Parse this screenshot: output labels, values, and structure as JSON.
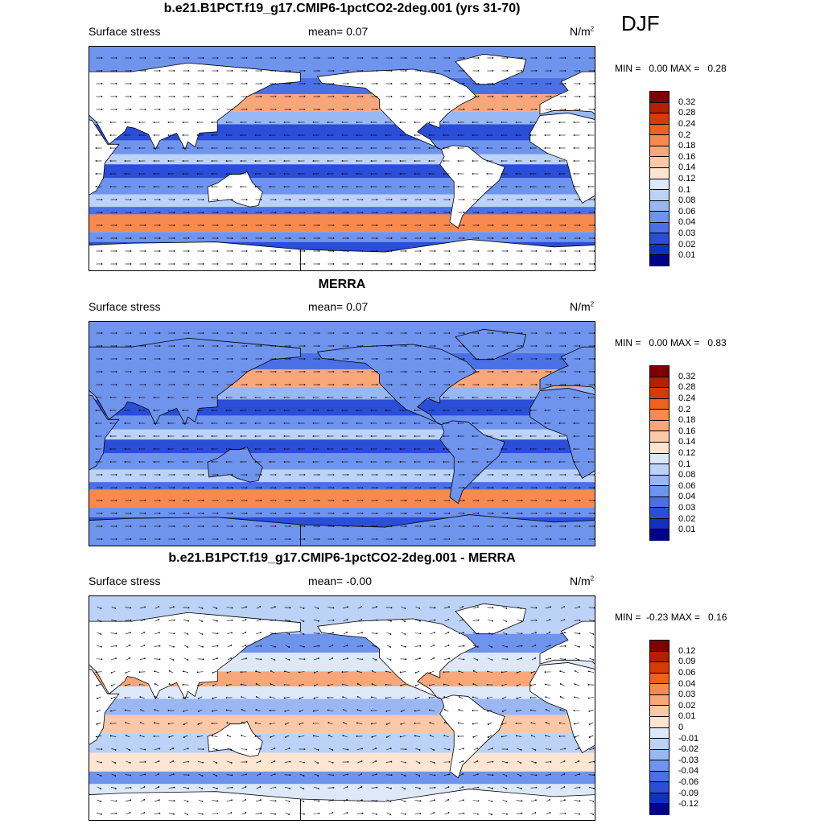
{
  "season": "DJF",
  "panels": [
    {
      "title": "b.e21.B1PCT.f19_g17.CMIP6-1pctCO2-2deg.001 (yrs 31-70)",
      "variable": "Surface stress",
      "mean": "mean=   0.07",
      "unit": "N/m",
      "unit_sup": "2",
      "minmax": "MIN =   0.00 MAX =   0.28",
      "scale": "abs",
      "field_variant": "model"
    },
    {
      "title": "MERRA",
      "variable": "Surface stress",
      "mean": "mean=   0.07",
      "unit": "N/m",
      "unit_sup": "2",
      "minmax": "MIN =   0.00 MAX =   0.83",
      "scale": "abs",
      "field_variant": "obs"
    },
    {
      "title": "b.e21.B1PCT.f19_g17.CMIP6-1pctCO2-2deg.001 - MERRA",
      "variable": "Surface stress",
      "mean": "mean=   -0.00",
      "unit": "N/m",
      "unit_sup": "2",
      "minmax": "MIN =  -0.23 MAX =   0.16",
      "scale": "diff",
      "field_variant": "diff"
    }
  ],
  "colorbars": {
    "abs": {
      "labels": [
        "0.32",
        "0.28",
        "0.24",
        "0.2",
        "0.18",
        "0.16",
        "0.14",
        "0.12",
        "0.1",
        "0.08",
        "0.06",
        "0.04",
        "0.03",
        "0.02",
        "0.01"
      ],
      "colors": [
        "#7f0000",
        "#b22000",
        "#d83a06",
        "#f0601e",
        "#f88a50",
        "#f9a77a",
        "#fcc8a8",
        "#fde5d2",
        "#dde8f8",
        "#bcd2f6",
        "#99b8f3",
        "#6f94ee",
        "#4a70e6",
        "#2a4ed8",
        "#1231c0",
        "#00038a"
      ]
    },
    "diff": {
      "labels": [
        "0.12",
        "0.09",
        "0.06",
        "0.04",
        "0.03",
        "0.02",
        "0.01",
        "0",
        "-0.01",
        "-0.02",
        "-0.03",
        "-0.04",
        "-0.06",
        "-0.09",
        "-0.12"
      ],
      "colors": [
        "#7f0000",
        "#b22000",
        "#d83a06",
        "#f0601e",
        "#f88a50",
        "#f9a77a",
        "#fcc8a8",
        "#fde5d2",
        "#dde8f8",
        "#bcd2f6",
        "#99b8f3",
        "#6f94ee",
        "#4a70e6",
        "#2a4ed8",
        "#1231c0",
        "#00038a"
      ]
    }
  },
  "map_colors": {
    "land": "#ffffff",
    "coast": "#000000",
    "vector": "#000000"
  }
}
